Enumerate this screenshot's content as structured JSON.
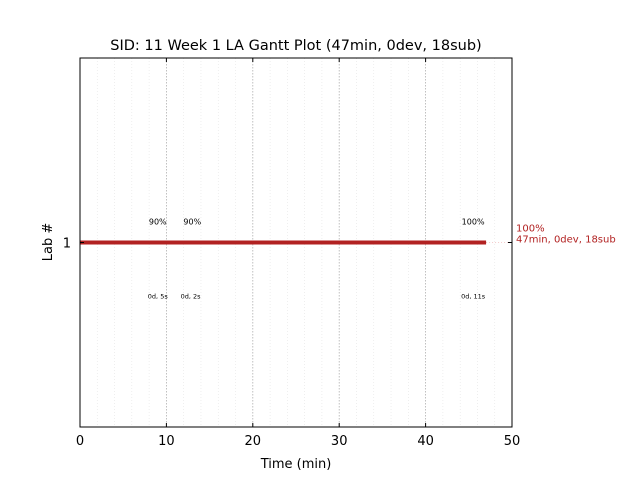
{
  "chart_data": {
    "type": "gantt",
    "title": "SID: 11 Week 1 LA Gantt Plot (47min, 0dev, 18sub)",
    "xlabel": "Time (min)",
    "ylabel": "Lab #",
    "xlim": [
      0,
      50
    ],
    "ylim": [
      0,
      2
    ],
    "xticks": [
      0,
      10,
      20,
      30,
      40,
      50
    ],
    "xtick_labels": [
      "0",
      "10",
      "20",
      "30",
      "40",
      "50"
    ],
    "yticks": [
      1
    ],
    "ytick_labels": [
      "1"
    ],
    "major_grid_x": [
      10,
      20,
      30,
      40
    ],
    "minor_grid_x": [
      2,
      4,
      6,
      8,
      12,
      14,
      16,
      18,
      22,
      24,
      26,
      28,
      32,
      34,
      36,
      38,
      42,
      44,
      46,
      48
    ],
    "bar": {
      "lab": 1,
      "start": 0,
      "end": 47,
      "color": "#b22222"
    },
    "score_labels": [
      {
        "x": 9,
        "text": "90%"
      },
      {
        "x": 13,
        "text": "90%"
      },
      {
        "x": 45.5,
        "text": "100%"
      }
    ],
    "duration_labels": [
      {
        "x": 9,
        "text": "0d, 5s"
      },
      {
        "x": 12.8,
        "text": "0d, 2s"
      },
      {
        "x": 45.5,
        "text": "0d, 11s"
      }
    ],
    "end_annotation": {
      "lines": [
        "100%",
        "47min, 0dev, 18sub"
      ],
      "color": "#b22222"
    }
  }
}
